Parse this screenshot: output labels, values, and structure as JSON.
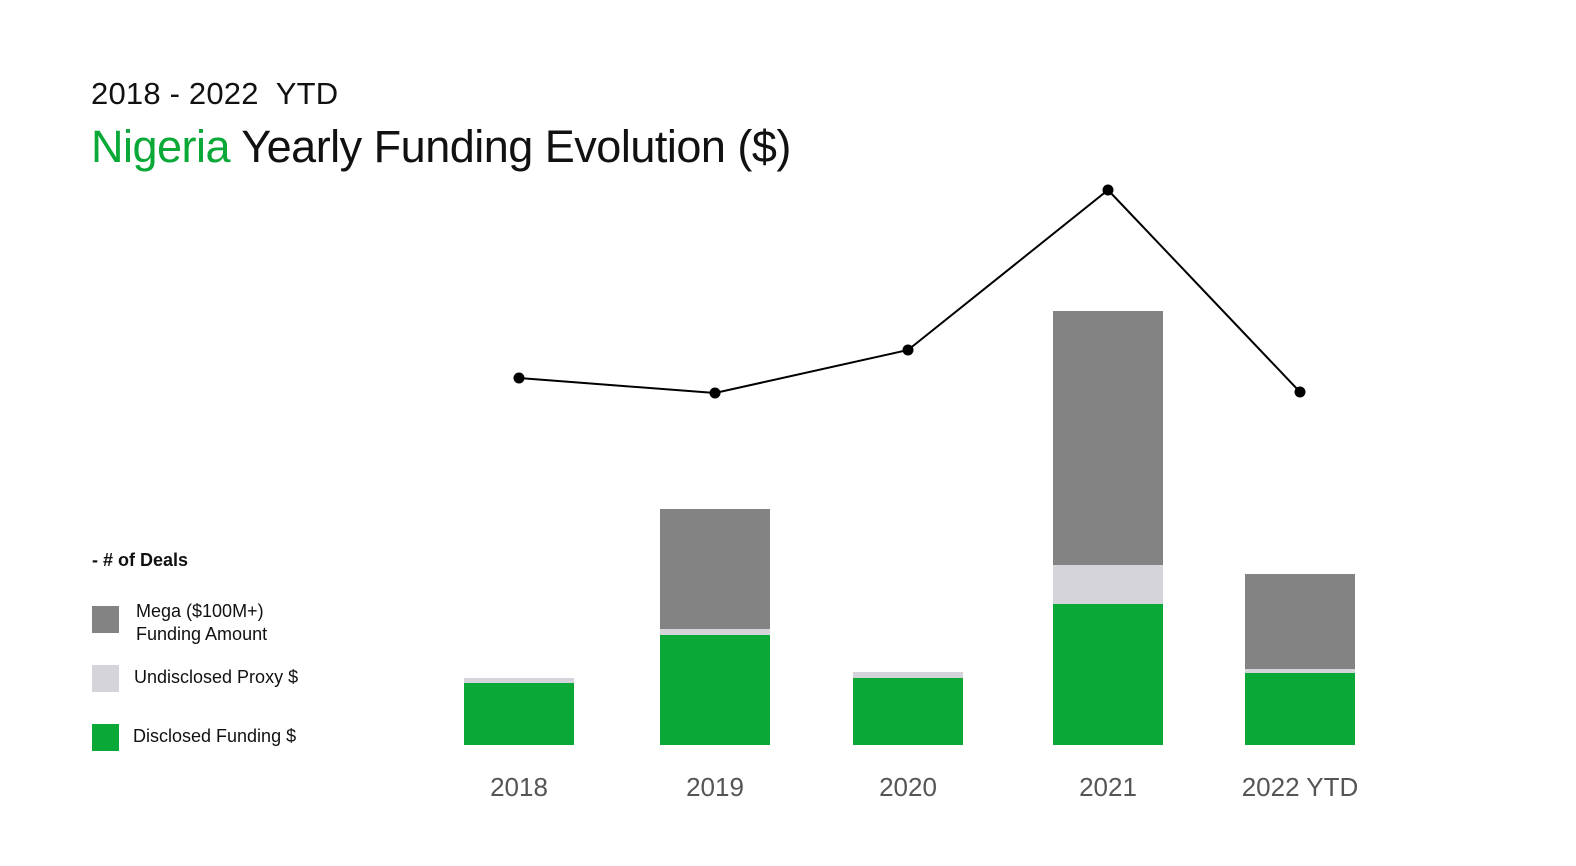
{
  "header": {
    "subtitle": "2018 - 2022  YTD",
    "title_highlight": "Nigeria",
    "title_rest": " Yearly Funding Evolution ($)",
    "highlight_color": "#0aa937"
  },
  "legend": {
    "line_label": "- # of Deals",
    "items": [
      {
        "line1": "Mega ($100M+)",
        "line2": "Funding Amount",
        "color": "#838383"
      },
      {
        "line1": "Undisclosed Proxy $",
        "line2": "",
        "color": "#d4d4da"
      },
      {
        "line1": "Disclosed Funding $",
        "line2": "",
        "color": "#0aa937"
      }
    ]
  },
  "chart_data": {
    "type": "bar",
    "stacked": true,
    "categories": [
      "2018",
      "2019",
      "2020",
      "2021",
      "2022 YTD"
    ],
    "units_note": "no value axis shown; values are relative bar heights",
    "series": [
      {
        "name": "Disclosed Funding $",
        "color": "#0aa937",
        "values": [
          62,
          110,
          67,
          141,
          72
        ]
      },
      {
        "name": "Undisclosed Proxy $",
        "color": "#d4d4da",
        "values": [
          5,
          6,
          6,
          39,
          4
        ]
      },
      {
        "name": "Mega ($100M+) Funding Amount",
        "color": "#838383",
        "values": [
          0,
          120,
          0,
          254,
          95
        ]
      }
    ],
    "line_series": {
      "name": "# of Deals",
      "color": "#000000",
      "values": [
        367,
        352,
        395,
        555,
        353
      ]
    },
    "axis_tick_color": "#555555"
  }
}
